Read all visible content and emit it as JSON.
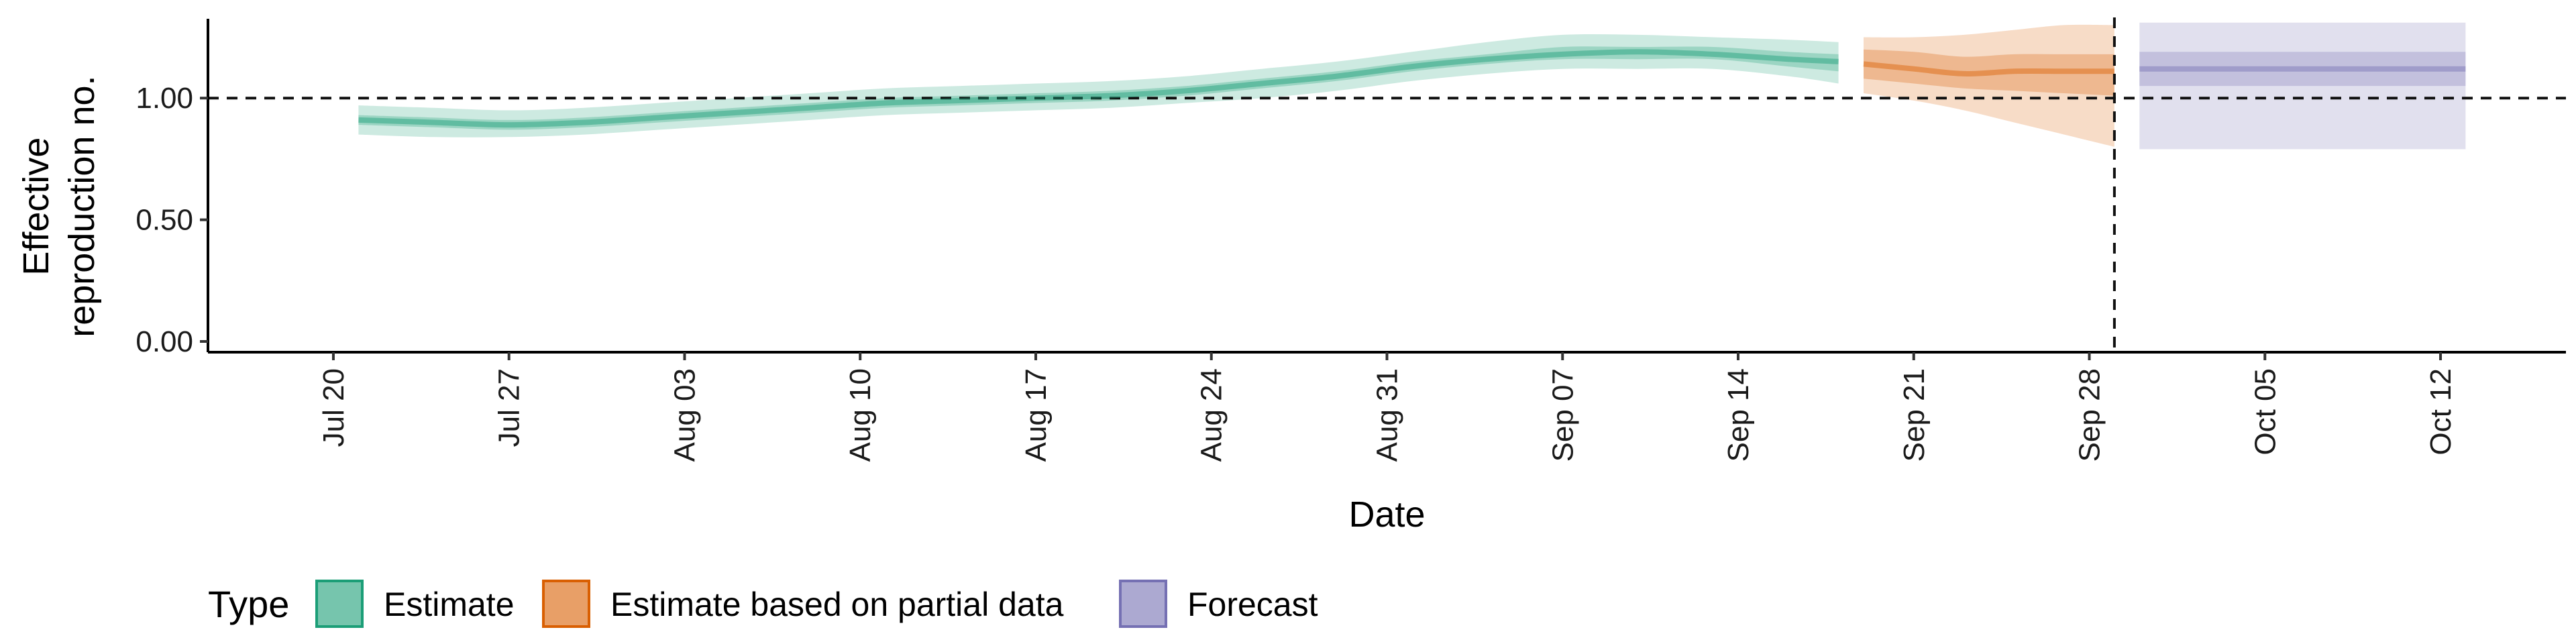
{
  "chart_data": {
    "type": "area",
    "xlabel": "Date",
    "ylabel_lines": [
      "Effective",
      "reproduction no."
    ],
    "ylim": [
      0,
      1.37
    ],
    "y_ticks": [
      {
        "value": 0.0,
        "label": "0.00"
      },
      {
        "value": 0.5,
        "label": "0.50"
      },
      {
        "value": 1.0,
        "label": "1.00"
      }
    ],
    "x_start": "2020-07-15",
    "x_end": "2020-10-17",
    "x_ticks": [
      {
        "date": "2020-07-20",
        "label": "Jul 20"
      },
      {
        "date": "2020-07-27",
        "label": "Jul 27"
      },
      {
        "date": "2020-08-03",
        "label": "Aug 03"
      },
      {
        "date": "2020-08-10",
        "label": "Aug 10"
      },
      {
        "date": "2020-08-17",
        "label": "Aug 17"
      },
      {
        "date": "2020-08-24",
        "label": "Aug 24"
      },
      {
        "date": "2020-08-31",
        "label": "Aug 31"
      },
      {
        "date": "2020-09-07",
        "label": "Sep 07"
      },
      {
        "date": "2020-09-14",
        "label": "Sep 14"
      },
      {
        "date": "2020-09-21",
        "label": "Sep 21"
      },
      {
        "date": "2020-09-28",
        "label": "Sep 28"
      },
      {
        "date": "2020-10-05",
        "label": "Oct 05"
      },
      {
        "date": "2020-10-12",
        "label": "Oct 12"
      }
    ],
    "reference_line_y": 1.0,
    "vertical_line_date": "2020-09-29",
    "legend": {
      "title": "Type",
      "position": "bottom-left",
      "entries": [
        "Estimate",
        "Estimate based on partial data",
        "Forecast"
      ]
    },
    "series": [
      {
        "name": "Estimate",
        "color": "#1b9e77",
        "points": [
          {
            "date": "2020-07-21",
            "median": 0.91,
            "inner": [
              0.89,
              0.93
            ],
            "outer": [
              0.85,
              0.97
            ]
          },
          {
            "date": "2020-07-24",
            "median": 0.9,
            "inner": [
              0.88,
              0.92
            ],
            "outer": [
              0.84,
              0.96
            ]
          },
          {
            "date": "2020-07-27",
            "median": 0.89,
            "inner": [
              0.87,
              0.91
            ],
            "outer": [
              0.84,
              0.95
            ]
          },
          {
            "date": "2020-07-30",
            "median": 0.9,
            "inner": [
              0.88,
              0.92
            ],
            "outer": [
              0.85,
              0.96
            ]
          },
          {
            "date": "2020-08-02",
            "median": 0.92,
            "inner": [
              0.9,
              0.94
            ],
            "outer": [
              0.87,
              0.98
            ]
          },
          {
            "date": "2020-08-05",
            "median": 0.94,
            "inner": [
              0.92,
              0.96
            ],
            "outer": [
              0.89,
              1.0
            ]
          },
          {
            "date": "2020-08-08",
            "median": 0.96,
            "inner": [
              0.94,
              0.98
            ],
            "outer": [
              0.91,
              1.02
            ]
          },
          {
            "date": "2020-08-11",
            "median": 0.98,
            "inner": [
              0.96,
              1.0
            ],
            "outer": [
              0.93,
              1.04
            ]
          },
          {
            "date": "2020-08-14",
            "median": 0.99,
            "inner": [
              0.97,
              1.01
            ],
            "outer": [
              0.94,
              1.05
            ]
          },
          {
            "date": "2020-08-17",
            "median": 1.0,
            "inner": [
              0.98,
              1.02
            ],
            "outer": [
              0.95,
              1.06
            ]
          },
          {
            "date": "2020-08-20",
            "median": 1.01,
            "inner": [
              0.99,
              1.03
            ],
            "outer": [
              0.96,
              1.07
            ]
          },
          {
            "date": "2020-08-23",
            "median": 1.03,
            "inner": [
              1.01,
              1.05
            ],
            "outer": [
              0.98,
              1.09
            ]
          },
          {
            "date": "2020-08-26",
            "median": 1.06,
            "inner": [
              1.04,
              1.08
            ],
            "outer": [
              1.0,
              1.12
            ]
          },
          {
            "date": "2020-08-29",
            "median": 1.09,
            "inner": [
              1.07,
              1.11
            ],
            "outer": [
              1.03,
              1.15
            ]
          },
          {
            "date": "2020-09-01",
            "median": 1.13,
            "inner": [
              1.11,
              1.15
            ],
            "outer": [
              1.07,
              1.19
            ]
          },
          {
            "date": "2020-09-04",
            "median": 1.16,
            "inner": [
              1.14,
              1.18
            ],
            "outer": [
              1.1,
              1.23
            ]
          },
          {
            "date": "2020-09-07",
            "median": 1.18,
            "inner": [
              1.16,
              1.21
            ],
            "outer": [
              1.12,
              1.26
            ]
          },
          {
            "date": "2020-09-10",
            "median": 1.19,
            "inner": [
              1.16,
              1.21
            ],
            "outer": [
              1.12,
              1.26
            ]
          },
          {
            "date": "2020-09-13",
            "median": 1.18,
            "inner": [
              1.16,
              1.21
            ],
            "outer": [
              1.12,
              1.25
            ]
          },
          {
            "date": "2020-09-16",
            "median": 1.16,
            "inner": [
              1.13,
              1.19
            ],
            "outer": [
              1.09,
              1.24
            ]
          },
          {
            "date": "2020-09-18",
            "median": 1.15,
            "inner": [
              1.11,
              1.18
            ],
            "outer": [
              1.06,
              1.23
            ]
          }
        ]
      },
      {
        "name": "Estimate based on partial data",
        "color": "#d95f02",
        "points": [
          {
            "date": "2020-09-19",
            "median": 1.14,
            "inner": [
              1.08,
              1.2
            ],
            "outer": [
              1.02,
              1.25
            ]
          },
          {
            "date": "2020-09-21",
            "median": 1.12,
            "inner": [
              1.06,
              1.19
            ],
            "outer": [
              0.99,
              1.25
            ]
          },
          {
            "date": "2020-09-23",
            "median": 1.1,
            "inner": [
              1.04,
              1.17
            ],
            "outer": [
              0.95,
              1.26
            ]
          },
          {
            "date": "2020-09-25",
            "median": 1.11,
            "inner": [
              1.03,
              1.18
            ],
            "outer": [
              0.9,
              1.28
            ]
          },
          {
            "date": "2020-09-27",
            "median": 1.11,
            "inner": [
              1.02,
              1.18
            ],
            "outer": [
              0.85,
              1.3
            ]
          },
          {
            "date": "2020-09-29",
            "median": 1.11,
            "inner": [
              1.01,
              1.18
            ],
            "outer": [
              0.8,
              1.3
            ]
          }
        ]
      },
      {
        "name": "Forecast",
        "color": "#7570b3",
        "points": [
          {
            "date": "2020-09-30",
            "median": 1.12,
            "inner": [
              1.05,
              1.19
            ],
            "outer": [
              0.79,
              1.31
            ]
          },
          {
            "date": "2020-10-13",
            "median": 1.12,
            "inner": [
              1.05,
              1.19
            ],
            "outer": [
              0.79,
              1.31
            ]
          }
        ]
      }
    ]
  }
}
